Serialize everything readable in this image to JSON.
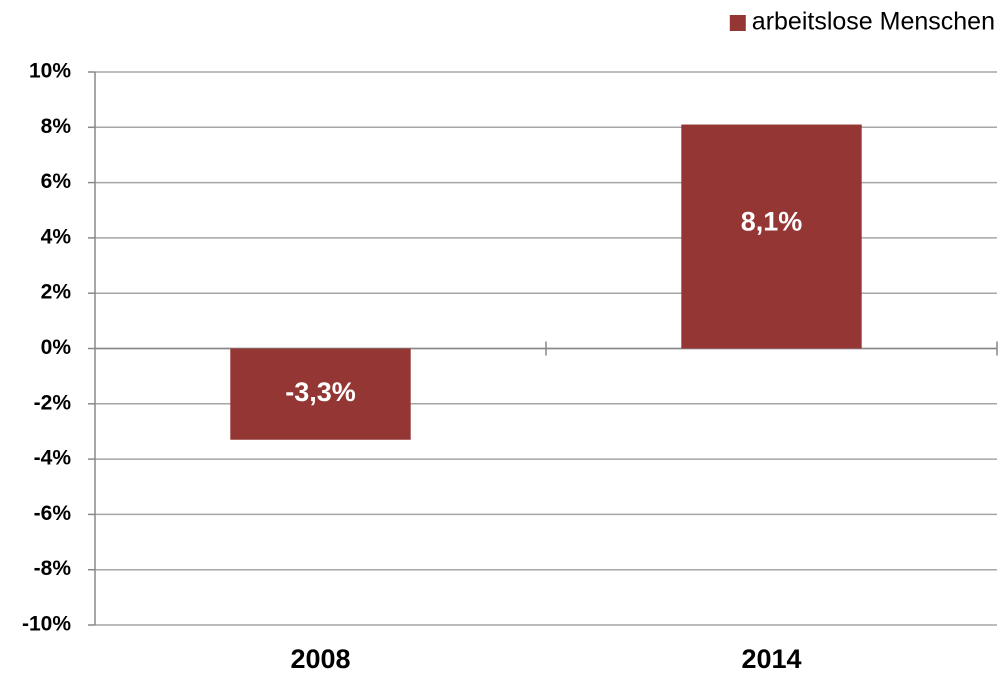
{
  "chart_data": {
    "type": "bar",
    "categories": [
      "2008",
      "2014"
    ],
    "series": [
      {
        "name": "arbeitslose Menschen",
        "color": "#943634",
        "values": [
          -3.3,
          8.1
        ],
        "value_labels": [
          "-3,3%",
          "8,1%"
        ]
      }
    ],
    "ylim": [
      -10,
      10
    ],
    "yticks": [
      {
        "value": -10,
        "label": "-10%"
      },
      {
        "value": -8,
        "label": "-8%"
      },
      {
        "value": -6,
        "label": "-6%"
      },
      {
        "value": -4,
        "label": "-4%"
      },
      {
        "value": -2,
        "label": "-2%"
      },
      {
        "value": 0,
        "label": "0%"
      },
      {
        "value": 2,
        "label": "2%"
      },
      {
        "value": 4,
        "label": "4%"
      },
      {
        "value": 6,
        "label": "6%"
      },
      {
        "value": 8,
        "label": "8%"
      },
      {
        "value": 10,
        "label": "10%"
      }
    ],
    "grid": true,
    "legend": "top-right"
  }
}
